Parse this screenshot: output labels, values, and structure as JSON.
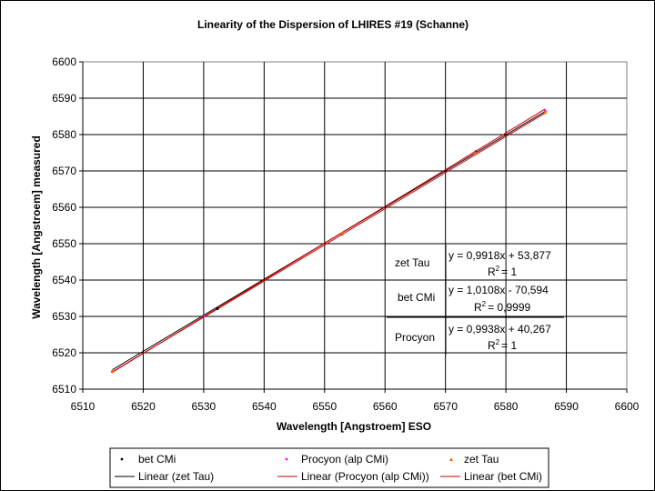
{
  "chart_data": {
    "type": "scatter",
    "title": "Linearity of the Dispersion of LHIRES #19 (Schanne)",
    "xlabel": "Wavelength [Angstroem] ESO",
    "ylabel": "Wavelength [Angstroem] measured",
    "xlim": [
      6510,
      6600
    ],
    "ylim": [
      6510,
      6600
    ],
    "xticks": [
      6510,
      6520,
      6530,
      6540,
      6550,
      6560,
      6570,
      6580,
      6590,
      6600
    ],
    "yticks": [
      6510,
      6520,
      6530,
      6540,
      6550,
      6560,
      6570,
      6580,
      6590,
      6600
    ],
    "grid": true,
    "series": [
      {
        "name": "bet CMi",
        "color": "#000000",
        "marker": "dot",
        "points": [
          [
            6514.9,
            6514.8
          ],
          [
            6532.3,
            6532.1
          ],
          [
            6552.9,
            6552.6
          ],
          [
            6575.0,
            6575.3
          ],
          [
            6586.5,
            6586.4
          ]
        ]
      },
      {
        "name": "Procyon (alp CMi)",
        "color": "#ff00ff",
        "marker": "dot",
        "points": [
          [
            6514.9,
            6514.9
          ],
          [
            6530.1,
            6530.1
          ],
          [
            6552.9,
            6552.7
          ],
          [
            6575.0,
            6575.0
          ],
          [
            6586.5,
            6586.5
          ]
        ]
      },
      {
        "name": "zet Tau",
        "color": "#ff6600",
        "marker": "triangle",
        "points": [
          [
            6514.9,
            6515.0
          ],
          [
            6552.9,
            6552.9
          ],
          [
            6575.0,
            6575.1
          ],
          [
            6586.5,
            6586.3
          ]
        ]
      }
    ],
    "trendlines": [
      {
        "name": "Linear (zet Tau)",
        "color": "#000000",
        "slope": 0.9918,
        "intercept": 53.877,
        "x_range": [
          6514.9,
          6586.5
        ]
      },
      {
        "name": "Linear (Procyon (alp CMi))",
        "color": "#cc0000",
        "slope": 0.9938,
        "intercept": 40.267,
        "x_range": [
          6514.9,
          6586.5
        ]
      },
      {
        "name": "Linear (bet CMi)",
        "color": "#cc0000",
        "slope": 1.0108,
        "intercept": -70.594,
        "x_range": [
          6514.9,
          6586.5
        ]
      }
    ],
    "annotations": [
      {
        "label": "zet Tau",
        "equation": "y = 0,9918x + 53,877",
        "r2_value": "= 1"
      },
      {
        "label": "bet CMi",
        "equation": "y = 1,0108x - 70,594",
        "r2_value": "= 0,9999"
      },
      {
        "label": "Procyon",
        "equation": "y = 0,9938x + 40,267",
        "r2_value": "= 1"
      }
    ],
    "r2_prefix": "R",
    "r2_exp": "2",
    "legend": {
      "position": "bottom",
      "entries": [
        "bet CMi",
        "Procyon (alp CMi)",
        "zet Tau",
        "Linear (zet Tau)",
        "Linear (Procyon (alp CMi))",
        "Linear (bet CMi)"
      ]
    }
  }
}
